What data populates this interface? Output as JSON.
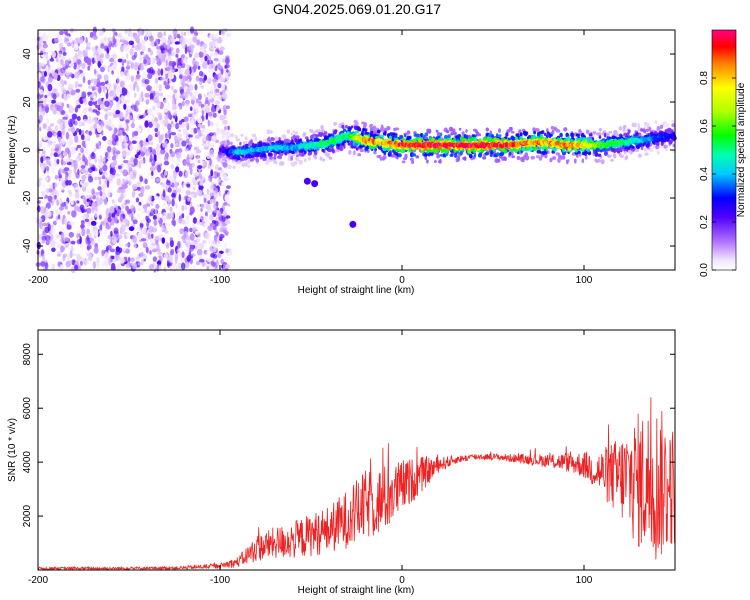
{
  "title": "GN04.2025.069.01.20.G17",
  "chart_data": [
    {
      "type": "heatmap",
      "title": "GN04.2025.069.01.20.G17",
      "xlabel": "Height of straight line (km)",
      "ylabel": "Frequency (Hz)",
      "xlim": [
        -200,
        150
      ],
      "ylim": [
        -50,
        50
      ],
      "xticks": [
        -200,
        -100,
        0,
        100
      ],
      "yticks": [
        -40,
        -20,
        0,
        20,
        40
      ],
      "colorbar": {
        "label": "Normalized spectral amplitude",
        "range": [
          0,
          1
        ],
        "ticks": [
          0.0,
          0.2,
          0.4,
          0.6,
          0.8
        ],
        "tick_labels": [
          "0.0",
          "0.2",
          "0.4",
          "0.6",
          "0.8"
        ]
      },
      "noise_region": {
        "x_from": -200,
        "x_to": -95,
        "amplitude_range": [
          0.0,
          0.15
        ]
      },
      "signal_track": {
        "x": [
          -100,
          -90,
          -80,
          -70,
          -60,
          -50,
          -40,
          -30,
          -20,
          -10,
          0,
          10,
          20,
          30,
          40,
          50,
          60,
          70,
          80,
          90,
          100,
          110,
          120,
          130,
          140,
          150
        ],
        "frequency": [
          0,
          -1,
          0,
          1,
          1,
          2,
          3,
          6,
          4,
          3,
          2,
          2,
          2,
          2,
          2,
          2,
          2,
          3,
          3,
          2,
          2,
          2,
          3,
          4,
          5,
          6
        ],
        "peak_amplitude": [
          0.2,
          0.45,
          0.4,
          0.45,
          0.4,
          0.5,
          0.55,
          0.55,
          0.9,
          0.85,
          0.95,
          1.0,
          1.0,
          1.0,
          1.0,
          1.0,
          0.95,
          0.9,
          0.85,
          0.9,
          0.8,
          0.6,
          0.55,
          0.45,
          0.35,
          0.3
        ]
      },
      "secondary_blobs": [
        {
          "x": -52,
          "frequency": -13
        },
        {
          "x": -48,
          "frequency": -14
        },
        {
          "x": -27,
          "frequency": -31
        }
      ]
    },
    {
      "type": "line",
      "xlabel": "Height of straight line (km)",
      "ylabel": "SNR (10 * v/v)",
      "xlim": [
        -200,
        150
      ],
      "ylim": [
        0,
        8900
      ],
      "xticks": [
        -200,
        -100,
        0,
        100
      ],
      "yticks": [
        2000,
        4000,
        6000,
        8000
      ],
      "series": [
        {
          "name": "SNR",
          "color": "#ee2222",
          "x": [
            -200,
            -180,
            -160,
            -140,
            -120,
            -100,
            -90,
            -80,
            -70,
            -60,
            -50,
            -40,
            -30,
            -20,
            -10,
            0,
            10,
            20,
            30,
            40,
            50,
            60,
            70,
            80,
            90,
            100,
            110,
            120,
            130,
            140,
            150
          ],
          "mean": [
            60,
            60,
            60,
            70,
            80,
            150,
            300,
            800,
            1000,
            1100,
            1300,
            1500,
            1900,
            2400,
            2600,
            3100,
            3500,
            3900,
            4100,
            4200,
            4200,
            4150,
            4100,
            4050,
            4000,
            3900,
            3600,
            3400,
            3300,
            3200,
            3100
          ],
          "spread": [
            50,
            50,
            50,
            50,
            60,
            100,
            200,
            500,
            600,
            700,
            800,
            900,
            1100,
            1300,
            1300,
            1000,
            700,
            300,
            150,
            120,
            120,
            150,
            200,
            250,
            350,
            500,
            900,
            1600,
            2600,
            3000,
            2200
          ]
        }
      ]
    }
  ]
}
